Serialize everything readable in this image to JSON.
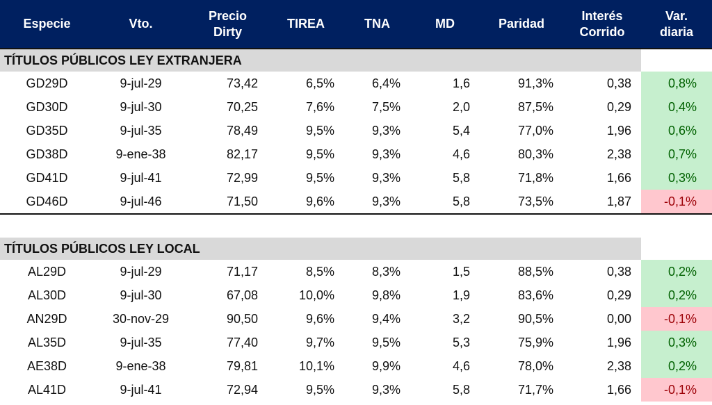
{
  "headers": [
    "Especie",
    "Vto.",
    "Precio Dirty",
    "TIREA",
    "TNA",
    "MD",
    "Paridad",
    "Interés Corrido",
    "Var. diaria"
  ],
  "header_lines": [
    [
      "Especie"
    ],
    [
      "Vto."
    ],
    [
      "Precio",
      "Dirty"
    ],
    [
      "TIREA"
    ],
    [
      "TNA"
    ],
    [
      "MD"
    ],
    [
      "Paridad"
    ],
    [
      "Interés",
      "Corrido"
    ],
    [
      "Var.",
      "diaria"
    ]
  ],
  "colors": {
    "header_bg": "#002060",
    "section_bg": "#d9d9d9",
    "pos_bg": "#c6efce",
    "pos_text": "#006100",
    "neg_bg": "#ffc7ce",
    "neg_text": "#9c0006"
  },
  "sections": [
    {
      "title": "TÍTULOS PÚBLICOS LEY EXTRANJERA",
      "rows": [
        [
          "GD29D",
          "9-jul-29",
          "73,42",
          "6,5%",
          "6,4%",
          "1,6",
          "91,3%",
          "0,38",
          "0,8%"
        ],
        [
          "GD30D",
          "9-jul-30",
          "70,25",
          "7,6%",
          "7,5%",
          "2,0",
          "87,5%",
          "0,29",
          "0,4%"
        ],
        [
          "GD35D",
          "9-jul-35",
          "78,49",
          "9,5%",
          "9,3%",
          "5,4",
          "77,0%",
          "1,96",
          "0,6%"
        ],
        [
          "GD38D",
          "9-ene-38",
          "82,17",
          "9,5%",
          "9,3%",
          "4,6",
          "80,3%",
          "2,38",
          "0,7%"
        ],
        [
          "GD41D",
          "9-jul-41",
          "72,99",
          "9,5%",
          "9,3%",
          "5,8",
          "71,8%",
          "1,66",
          "0,3%"
        ],
        [
          "GD46D",
          "9-jul-46",
          "71,50",
          "9,6%",
          "9,3%",
          "5,8",
          "73,5%",
          "1,87",
          "-0,1%"
        ]
      ]
    },
    {
      "title": "TÍTULOS PÚBLICOS LEY LOCAL",
      "rows": [
        [
          "AL29D",
          "9-jul-29",
          "71,17",
          "8,5%",
          "8,3%",
          "1,5",
          "88,5%",
          "0,38",
          "0,2%"
        ],
        [
          "AL30D",
          "9-jul-30",
          "67,08",
          "10,0%",
          "9,8%",
          "1,9",
          "83,6%",
          "0,29",
          "0,2%"
        ],
        [
          "AN29D",
          "30-nov-29",
          "90,50",
          "9,6%",
          "9,4%",
          "3,2",
          "90,5%",
          "0,00",
          "-0,1%"
        ],
        [
          "AL35D",
          "9-jul-35",
          "77,40",
          "9,7%",
          "9,5%",
          "5,3",
          "75,9%",
          "1,96",
          "0,3%"
        ],
        [
          "AE38D",
          "9-ene-38",
          "79,81",
          "10,1%",
          "9,9%",
          "4,6",
          "78,0%",
          "2,38",
          "0,2%"
        ],
        [
          "AL41D",
          "9-jul-41",
          "72,94",
          "9,5%",
          "9,3%",
          "5,8",
          "71,7%",
          "1,66",
          "-0,1%"
        ]
      ]
    }
  ]
}
